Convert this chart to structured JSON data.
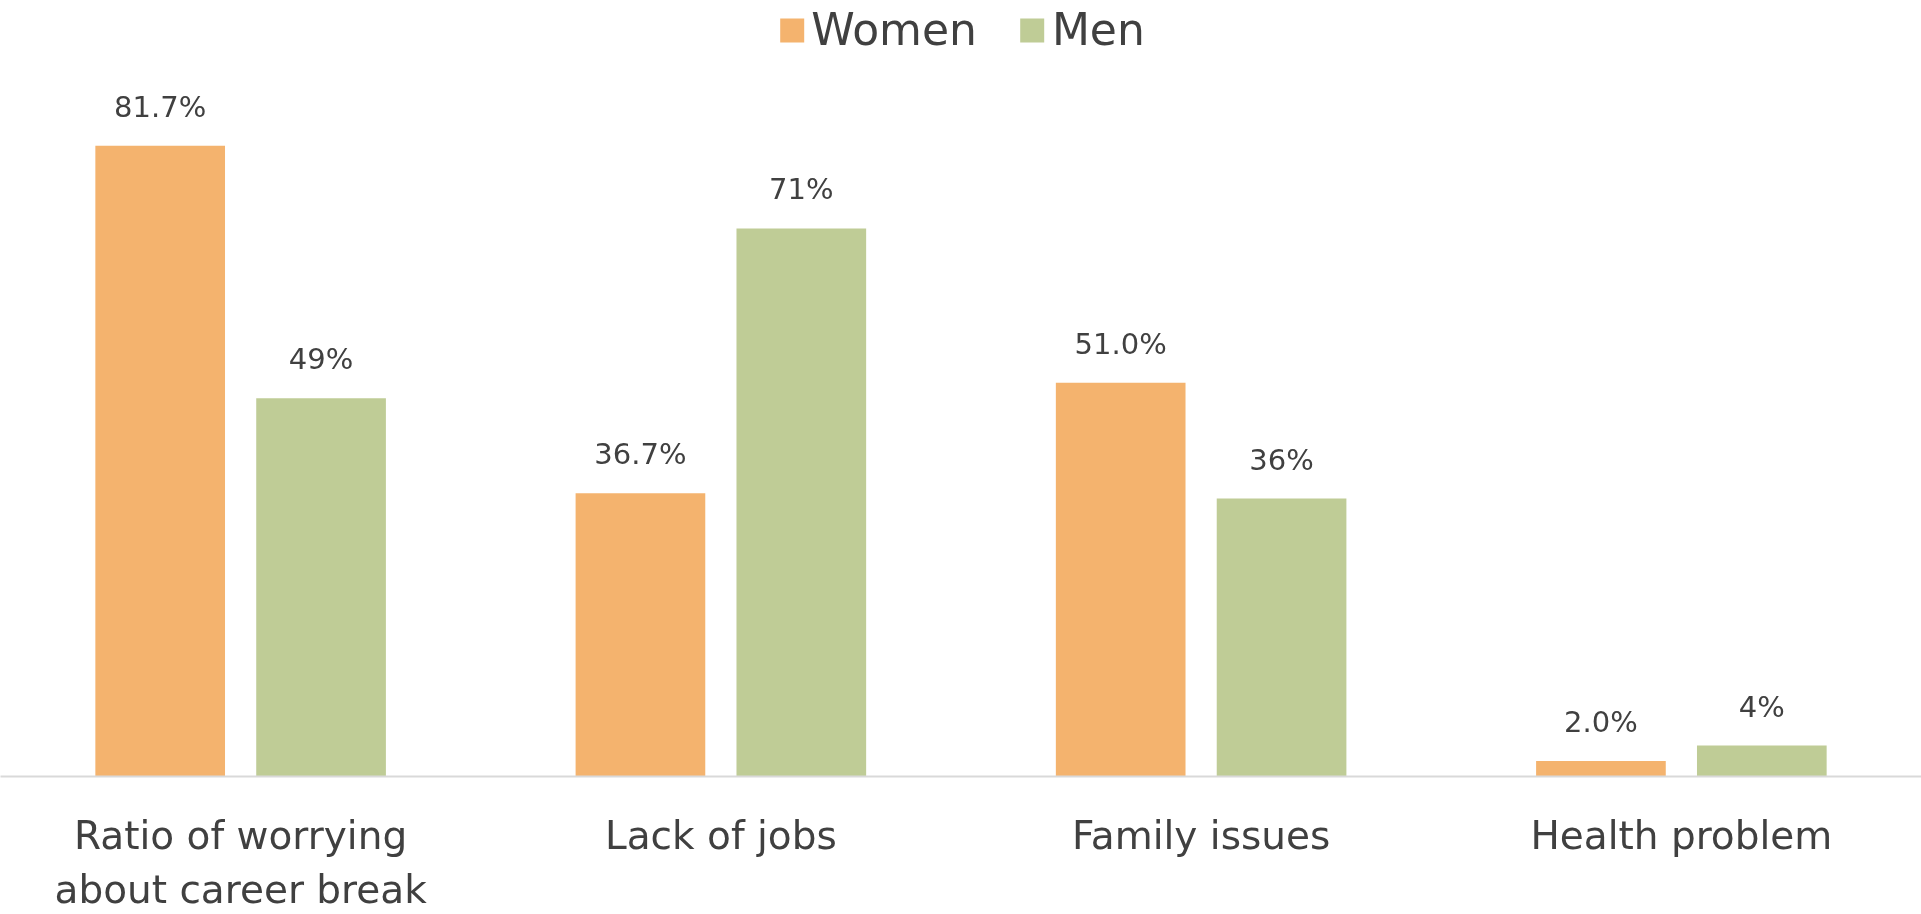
{
  "chart_data": {
    "type": "bar",
    "categories": [
      "Ratio of worrying about career break",
      "Lack of jobs",
      "Family issues",
      "Health problem"
    ],
    "series": [
      {
        "name": "Women",
        "color": "#f4b36e",
        "values": [
          81.7,
          36.7,
          51.0,
          2.0
        ],
        "value_labels": [
          "81.7%",
          "36.7%",
          "51.0%",
          "2.0%"
        ]
      },
      {
        "name": "Men",
        "color": "#bfcc96",
        "values": [
          49,
          71,
          36,
          4
        ],
        "value_labels": [
          "49%",
          "71%",
          "36%",
          "4%"
        ]
      }
    ],
    "legend": "top",
    "grid": false
  }
}
